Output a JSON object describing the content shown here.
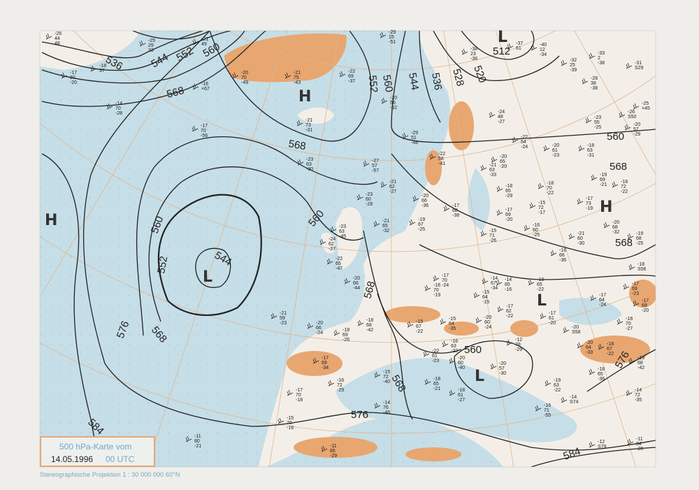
{
  "caption": {
    "title": "500 hPa-Karte vom",
    "date": "14.05.1996",
    "time": "00 UTC"
  },
  "projection": "Stereographische Projektion   1 : 30 000 000  60°N",
  "colors": {
    "ocean": "#c6dee7",
    "land": "#f3efe8",
    "highland": "#e8a670",
    "grid": "#e2b48e",
    "contour": "#222222",
    "caption_text": "#6fa8c8"
  },
  "pressure_centers": [
    {
      "label": "H",
      "kind": "high"
    },
    {
      "label": "H",
      "kind": "high"
    },
    {
      "label": "H",
      "kind": "high"
    },
    {
      "label": "L",
      "kind": "low"
    },
    {
      "label": "L",
      "kind": "low"
    },
    {
      "label": "L",
      "kind": "low"
    },
    {
      "label": "L",
      "kind": "low"
    }
  ],
  "contour_labels": [
    "536",
    "544",
    "552",
    "560",
    "568",
    "568",
    "560",
    "552",
    "544",
    "536",
    "528",
    "520",
    "512",
    "560",
    "568",
    "568",
    "560",
    "560",
    "552",
    "544",
    "576",
    "568",
    "584",
    "568",
    "568",
    "576",
    "560",
    "576",
    "584"
  ],
  "stations": [
    [
      "-26",
      "44",
      "48"
    ],
    [
      "-25",
      "29",
      "33"
    ],
    [
      "-21",
      "49",
      ""
    ],
    [
      "-17",
      "60",
      "-20"
    ],
    [
      "-18",
      "37",
      ""
    ],
    [
      "-14",
      "70",
      "-28"
    ],
    [
      "-16",
      "×67",
      ""
    ],
    [
      "-20",
      "70",
      "-49"
    ],
    [
      "-21",
      "75",
      "-43"
    ],
    [
      "-22",
      "69",
      "-37"
    ],
    [
      "-20",
      "56",
      "-32"
    ],
    [
      "-29",
      "15",
      "-51"
    ],
    [
      "-17",
      "70",
      "-56"
    ],
    [
      "-21",
      "73",
      "-31"
    ],
    [
      "-23",
      "63",
      "-30"
    ],
    [
      "-27",
      "57",
      "-57"
    ],
    [
      "-29",
      "51",
      "-48"
    ],
    [
      "-23",
      "60",
      "-28"
    ],
    [
      "-21",
      "62",
      "-27"
    ],
    [
      "-23",
      "63",
      "-45"
    ],
    [
      "-21",
      "65",
      "-32"
    ],
    [
      "-24",
      "62",
      "-27"
    ],
    [
      "-20",
      "66",
      "-36"
    ],
    [
      "-19",
      "67",
      "-25"
    ],
    [
      "-17",
      "68",
      "-38"
    ],
    [
      "-22",
      "58",
      "-41"
    ],
    [
      "-21",
      "63",
      "-33"
    ],
    [
      "-38",
      "23",
      "-36"
    ],
    [
      "-37",
      "61",
      ""
    ],
    [
      "-40",
      "12",
      "-34"
    ],
    [
      "-32",
      "25",
      "-39"
    ],
    [
      "-33",
      "2",
      "-38"
    ],
    [
      "-31",
      "S29",
      ""
    ],
    [
      "-28",
      "38",
      "-38"
    ],
    [
      "-25",
      "×45",
      ""
    ],
    [
      "-26",
      "S50",
      ""
    ],
    [
      "-20",
      "57",
      "-29"
    ],
    [
      "-23",
      "55",
      "-25"
    ],
    [
      "-22",
      "54",
      "-24"
    ],
    [
      "-24",
      "48",
      "-27"
    ],
    [
      "-20",
      "61",
      "-23"
    ],
    [
      "-20",
      "65",
      "-20"
    ],
    [
      "-18",
      "63",
      "-31"
    ],
    [
      "-19",
      "69",
      "-21"
    ],
    [
      "-18",
      "72",
      "-22"
    ],
    [
      "-18",
      "70",
      "-22"
    ],
    [
      "-18",
      "65",
      "-29"
    ],
    [
      "-17",
      "73",
      "-19"
    ],
    [
      "-15",
      "72",
      "-17"
    ],
    [
      "-17",
      "69",
      "-20"
    ],
    [
      "-15",
      "71",
      "-26"
    ],
    [
      "-16",
      "60",
      "-25"
    ],
    [
      "-21",
      "60",
      "-30"
    ],
    [
      "-20",
      "68",
      "-32"
    ],
    [
      "-19",
      "68",
      "-25"
    ],
    [
      "-18",
      "S56",
      ""
    ],
    [
      "-17",
      "69",
      "-23"
    ],
    [
      "-16",
      "66",
      "-36"
    ],
    [
      "-14",
      "67",
      "-34"
    ],
    [
      "-21",
      "59",
      "-23"
    ],
    [
      "-20",
      "66",
      "-24"
    ],
    [
      "-18",
      "69",
      "-26"
    ],
    [
      "-18",
      "68",
      "-42"
    ],
    [
      "-20",
      "66",
      "-44"
    ],
    [
      "-22",
      "65",
      "-47"
    ],
    [
      "-17",
      "70",
      "-24"
    ],
    [
      "-16",
      "70",
      "-19"
    ],
    [
      "-15",
      "64",
      "-35"
    ],
    [
      "-17",
      "62",
      "-22"
    ],
    [
      "-16",
      "63",
      "-22"
    ],
    [
      "-14",
      "65",
      "-16"
    ],
    [
      "-13",
      "65",
      "-22"
    ],
    [
      "-15",
      "64",
      "-15"
    ],
    [
      "-17",
      "61",
      "-20"
    ],
    [
      "-17",
      "64",
      "-24"
    ],
    [
      "-20",
      "S58",
      ""
    ],
    [
      "-20",
      "64",
      "-33"
    ],
    [
      "-18",
      "67",
      "-22"
    ],
    [
      "-18",
      "70",
      "-27"
    ],
    [
      "-17",
      "69",
      "-20"
    ],
    [
      "-17",
      "69",
      "-34"
    ],
    [
      "-15",
      "72",
      "-40"
    ],
    [
      "-16",
      "72",
      "-29"
    ],
    [
      "-17",
      "70",
      "-18"
    ],
    [
      "-15",
      "70",
      "-16"
    ],
    [
      "-22",
      "61",
      "-23"
    ],
    [
      "-20",
      "60",
      "-40"
    ],
    [
      "-20",
      "57",
      "-30"
    ],
    [
      "-18",
      "65",
      "-21"
    ],
    [
      "-18",
      "61",
      "-27"
    ],
    [
      "-14",
      "76",
      "-48"
    ],
    [
      "-16",
      "71",
      "-55"
    ],
    [
      "-14",
      "S74",
      ""
    ],
    [
      "-19",
      "63",
      "-22"
    ],
    [
      "-18",
      "65",
      "-36"
    ],
    [
      "-19",
      "68",
      "-42"
    ],
    [
      "-14",
      "72",
      "-35"
    ],
    [
      "-12",
      "S79",
      ""
    ],
    [
      "-11",
      "84",
      "-26"
    ],
    [
      "-11",
      "85",
      "-29"
    ],
    [
      "-11",
      "80",
      "-21"
    ],
    [
      "-12",
      "78",
      "-29"
    ],
    [
      "-20",
      "60",
      "-24"
    ],
    [
      "-15",
      "67",
      "-22"
    ],
    [
      "-15",
      "69",
      "-38"
    ]
  ]
}
